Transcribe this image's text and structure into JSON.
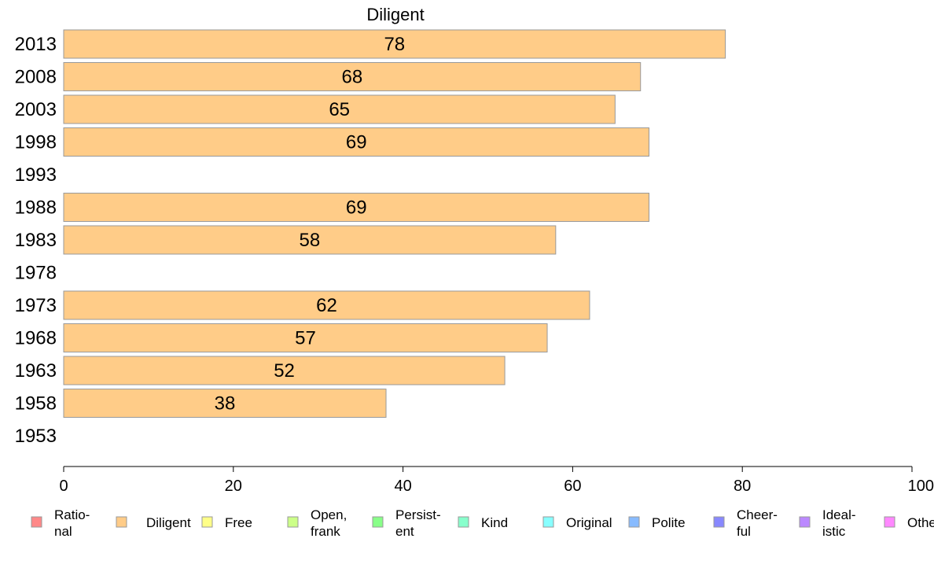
{
  "chart_data": {
    "type": "bar",
    "orientation": "horizontal",
    "title": "Diligent",
    "xlabel": "",
    "ylabel": "",
    "xlim": [
      0,
      100
    ],
    "x_ticks": [
      0,
      20,
      40,
      60,
      80,
      100
    ],
    "grid": false,
    "bar_color": "#ffcc88",
    "bar_border_color": "#999999",
    "categories": [
      "2013",
      "2008",
      "2003",
      "1998",
      "1993",
      "1988",
      "1983",
      "1978",
      "1973",
      "1968",
      "1963",
      "1958",
      "1953"
    ],
    "series": [
      {
        "name": "Diligent",
        "values": [
          78,
          68,
          65,
          69,
          null,
          69,
          58,
          null,
          62,
          57,
          52,
          38,
          null
        ],
        "labels": [
          "78",
          "68",
          "65",
          "69",
          "",
          "69",
          "58",
          "",
          "62",
          "57",
          "52",
          "38",
          ""
        ]
      }
    ],
    "legend": {
      "placement": "bottom",
      "items": [
        {
          "lines": [
            "Ratio-",
            "nal"
          ],
          "color": "#ff8888"
        },
        {
          "lines": [
            "Diligent"
          ],
          "color": "#ffcc88"
        },
        {
          "lines": [
            "Free"
          ],
          "color": "#ffff88"
        },
        {
          "lines": [
            "Open,",
            "frank"
          ],
          "color": "#ccff88"
        },
        {
          "lines": [
            "Persist-",
            "ent"
          ],
          "color": "#88ff88"
        },
        {
          "lines": [
            "Kind"
          ],
          "color": "#88ffcc"
        },
        {
          "lines": [
            "Original"
          ],
          "color": "#88ffff"
        },
        {
          "lines": [
            "Polite"
          ],
          "color": "#88bbff"
        },
        {
          "lines": [
            "Cheer-",
            "ful"
          ],
          "color": "#8888ff"
        },
        {
          "lines": [
            "Ideal-",
            "istic"
          ],
          "color": "#bb88ff"
        },
        {
          "lines": [
            "Othe"
          ],
          "color": "#ff88ff"
        }
      ]
    }
  }
}
